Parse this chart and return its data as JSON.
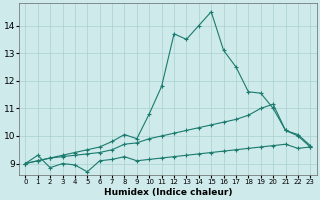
{
  "xlabel": "Humidex (Indice chaleur)",
  "bg_color": "#ceeaea",
  "line_color": "#1a7a6e",
  "grid_color": "#aacfcf",
  "xlim": [
    -0.5,
    23.5
  ],
  "ylim": [
    8.6,
    14.8
  ],
  "yticks": [
    9,
    10,
    11,
    12,
    13,
    14
  ],
  "xticks": [
    0,
    1,
    2,
    3,
    4,
    5,
    6,
    7,
    8,
    9,
    10,
    11,
    12,
    13,
    14,
    15,
    16,
    17,
    18,
    19,
    20,
    21,
    22,
    23
  ],
  "series": [
    {
      "x": [
        0,
        1,
        2,
        3,
        4,
        5,
        6,
        7,
        8,
        9,
        10,
        11,
        12,
        13,
        14,
        15,
        16,
        17,
        18,
        19,
        20,
        21,
        22,
        23
      ],
      "y": [
        9.0,
        9.3,
        8.85,
        9.0,
        8.95,
        8.7,
        9.1,
        9.15,
        9.25,
        9.1,
        9.15,
        9.2,
        9.25,
        9.3,
        9.35,
        9.4,
        9.45,
        9.5,
        9.55,
        9.6,
        9.65,
        9.7,
        9.55,
        9.6
      ]
    },
    {
      "x": [
        0,
        1,
        2,
        3,
        4,
        5,
        6,
        7,
        8,
        9,
        10,
        11,
        12,
        13,
        14,
        15,
        16,
        17,
        18,
        19,
        20,
        21,
        22,
        23
      ],
      "y": [
        9.0,
        9.1,
        9.2,
        9.25,
        9.3,
        9.35,
        9.4,
        9.5,
        9.7,
        9.75,
        9.9,
        10.0,
        10.1,
        10.2,
        10.3,
        10.4,
        10.5,
        10.6,
        10.75,
        11.0,
        11.15,
        10.2,
        10.05,
        9.65
      ]
    },
    {
      "x": [
        0,
        1,
        2,
        3,
        4,
        5,
        6,
        7,
        8,
        9,
        10,
        11,
        12,
        13,
        14,
        15,
        16,
        17,
        18,
        19,
        20,
        21,
        22,
        23
      ],
      "y": [
        9.0,
        9.1,
        9.2,
        9.3,
        9.4,
        9.5,
        9.6,
        9.8,
        10.05,
        9.9,
        10.8,
        11.8,
        13.7,
        13.5,
        14.0,
        14.5,
        13.1,
        12.5,
        11.6,
        11.55,
        11.0,
        10.2,
        10.0,
        9.6
      ]
    }
  ]
}
